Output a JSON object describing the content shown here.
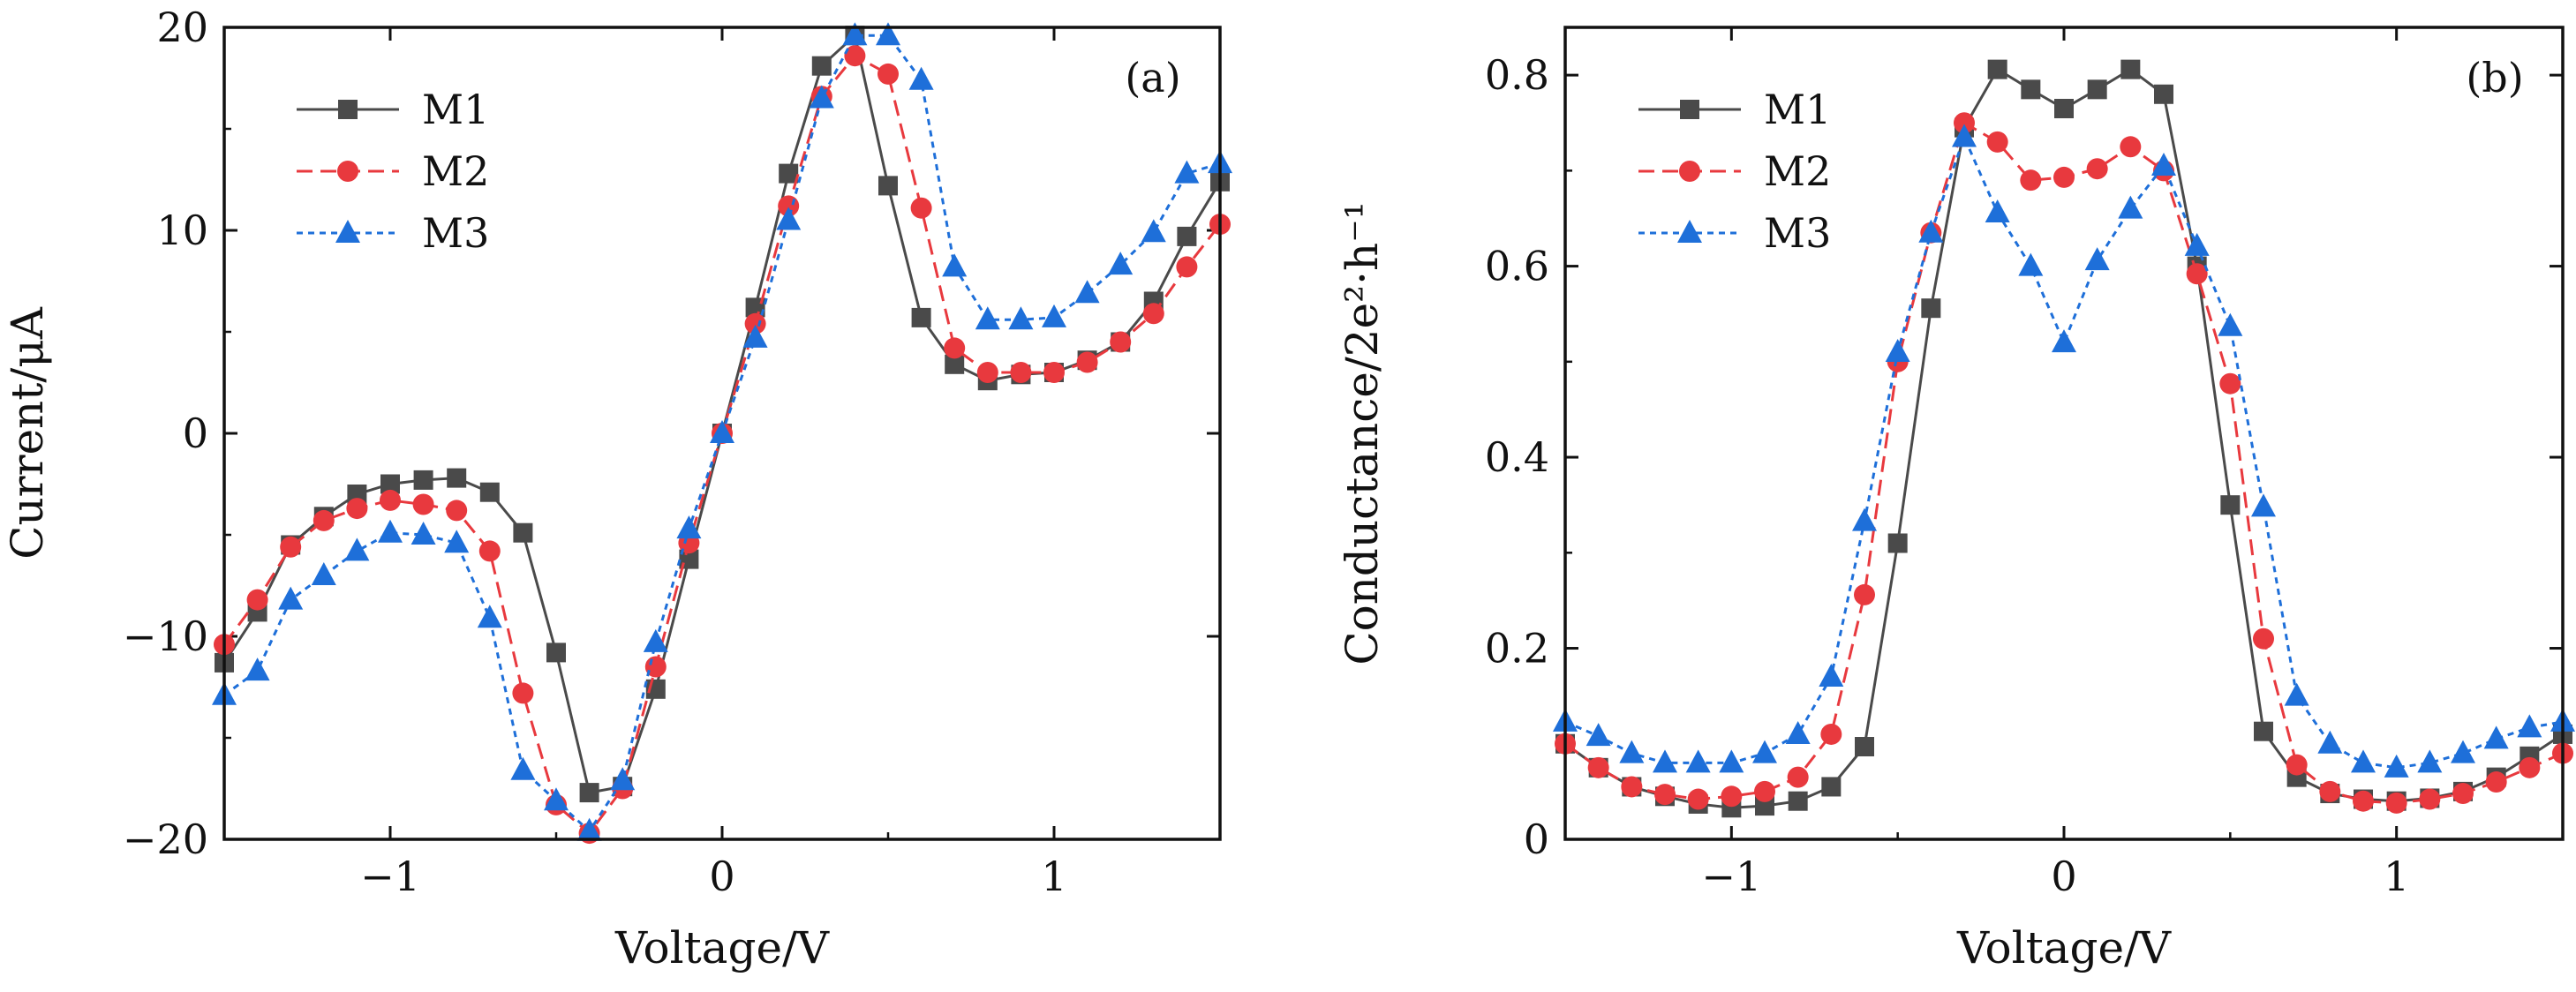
{
  "chart_data": [
    {
      "type": "line",
      "panel_label": "(a)",
      "xlabel": "Voltage/V",
      "ylabel": "Current/μA",
      "xlim": [
        -1.5,
        1.5
      ],
      "ylim": [
        -20,
        20
      ],
      "xticks": [
        -1,
        0,
        1
      ],
      "xtick_labels": [
        "−1",
        "0",
        "1"
      ],
      "yticks": [
        -20,
        -10,
        0,
        10,
        20
      ],
      "ytick_labels": [
        "−20",
        "−10",
        "0",
        "10",
        "20"
      ],
      "legend_position": "top-left",
      "grid": false,
      "x": [
        -1.5,
        -1.4,
        -1.3,
        -1.2,
        -1.1,
        -1.0,
        -0.9,
        -0.8,
        -0.7,
        -0.6,
        -0.5,
        -0.4,
        -0.3,
        -0.2,
        -0.1,
        0.0,
        0.1,
        0.2,
        0.3,
        0.4,
        0.5,
        0.6,
        0.7,
        0.8,
        0.9,
        1.0,
        1.1,
        1.2,
        1.3,
        1.4,
        1.5
      ],
      "series": [
        {
          "name": "M1",
          "color": "#4a4a4a",
          "marker": "square",
          "line_style": "solid",
          "values": [
            -11.3,
            -8.8,
            -5.5,
            -4.1,
            -3.0,
            -2.5,
            -2.3,
            -2.2,
            -2.9,
            -4.9,
            -10.8,
            -17.7,
            -17.4,
            -12.6,
            -6.2,
            0.0,
            6.2,
            12.8,
            18.1,
            19.6,
            12.2,
            5.7,
            3.4,
            2.6,
            2.9,
            3.0,
            3.6,
            4.5,
            6.5,
            9.7,
            12.4
          ]
        },
        {
          "name": "M2",
          "color": "#e8393e",
          "marker": "circle",
          "line_style": "dashed",
          "values": [
            -10.4,
            -8.2,
            -5.6,
            -4.3,
            -3.7,
            -3.3,
            -3.5,
            -3.8,
            -5.8,
            -12.8,
            -18.3,
            -19.7,
            -17.5,
            -11.5,
            -5.4,
            0.0,
            5.4,
            11.2,
            16.6,
            18.6,
            17.7,
            11.1,
            4.2,
            3.0,
            3.0,
            3.0,
            3.5,
            4.5,
            5.9,
            8.2,
            10.3
          ]
        },
        {
          "name": "M3",
          "color": "#1e6fd9",
          "marker": "triangle",
          "line_style": "dotted",
          "values": [
            -12.9,
            -11.7,
            -8.2,
            -7.0,
            -5.8,
            -4.9,
            -5.0,
            -5.4,
            -9.1,
            -16.6,
            -18.1,
            -19.6,
            -17.1,
            -10.3,
            -4.7,
            0.0,
            4.7,
            10.5,
            16.5,
            19.6,
            19.6,
            17.4,
            8.2,
            5.6,
            5.6,
            5.7,
            6.9,
            8.3,
            9.9,
            12.8,
            13.3
          ]
        }
      ]
    },
    {
      "type": "line",
      "panel_label": "(b)",
      "xlabel": "Voltage/V",
      "ylabel": "Conductance/2e²·h⁻¹",
      "xlim": [
        -1.5,
        1.5
      ],
      "ylim": [
        0,
        0.85
      ],
      "xticks": [
        -1,
        0,
        1
      ],
      "xtick_labels": [
        "−1",
        "0",
        "1"
      ],
      "yticks": [
        0,
        0.2,
        0.4,
        0.6,
        0.8
      ],
      "ytick_labels": [
        "0",
        "0.2",
        "0.4",
        "0.6",
        "0.8"
      ],
      "legend_position": "top-left",
      "grid": false,
      "x": [
        -1.5,
        -1.4,
        -1.3,
        -1.2,
        -1.1,
        -1.0,
        -0.9,
        -0.8,
        -0.7,
        -0.6,
        -0.5,
        -0.4,
        -0.3,
        -0.2,
        -0.1,
        0.0,
        0.1,
        0.2,
        0.3,
        0.4,
        0.5,
        0.6,
        0.7,
        0.8,
        0.9,
        1.0,
        1.1,
        1.2,
        1.3,
        1.4,
        1.5
      ],
      "series": [
        {
          "name": "M1",
          "color": "#4a4a4a",
          "marker": "square",
          "line_style": "solid",
          "values": [
            0.1,
            0.075,
            0.055,
            0.045,
            0.037,
            0.033,
            0.035,
            0.04,
            0.055,
            0.097,
            0.31,
            0.556,
            0.745,
            0.806,
            0.785,
            0.765,
            0.785,
            0.806,
            0.78,
            0.6,
            0.35,
            0.113,
            0.065,
            0.048,
            0.042,
            0.04,
            0.043,
            0.05,
            0.065,
            0.087,
            0.11
          ]
        },
        {
          "name": "M2",
          "color": "#e8393e",
          "marker": "circle",
          "line_style": "dashed",
          "values": [
            0.1,
            0.075,
            0.055,
            0.047,
            0.042,
            0.045,
            0.05,
            0.065,
            0.11,
            0.256,
            0.5,
            0.635,
            0.75,
            0.73,
            0.69,
            0.693,
            0.702,
            0.725,
            0.7,
            0.592,
            0.477,
            0.21,
            0.078,
            0.05,
            0.04,
            0.038,
            0.042,
            0.048,
            0.06,
            0.075,
            0.09
          ]
        },
        {
          "name": "M3",
          "color": "#1e6fd9",
          "marker": "triangle",
          "line_style": "dotted",
          "values": [
            0.123,
            0.108,
            0.09,
            0.08,
            0.08,
            0.08,
            0.09,
            0.11,
            0.17,
            0.333,
            0.51,
            0.635,
            0.735,
            0.656,
            0.6,
            0.52,
            0.606,
            0.66,
            0.705,
            0.621,
            0.537,
            0.348,
            0.15,
            0.1,
            0.08,
            0.075,
            0.08,
            0.09,
            0.105,
            0.117,
            0.123
          ]
        }
      ]
    }
  ]
}
